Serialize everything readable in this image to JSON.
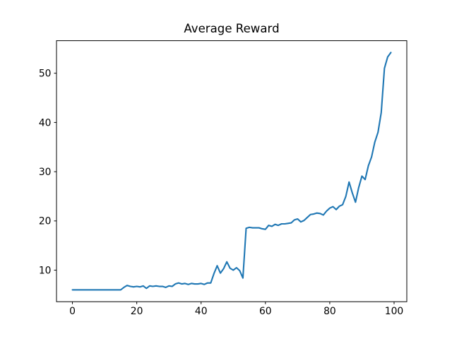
{
  "chart_data": {
    "type": "line",
    "title": "Average Reward",
    "xlabel": "",
    "ylabel": "",
    "grid": false,
    "legend": "none",
    "xlim": [
      -4.95,
      103.95
    ],
    "ylim": [
      3.59,
      56.61
    ],
    "xticks": [
      0,
      20,
      40,
      60,
      80,
      100
    ],
    "yticks": [
      10,
      20,
      30,
      40,
      50
    ],
    "background_color": "#ffffff",
    "spine_color": "#000000",
    "text_color": "#000000",
    "series": [
      {
        "name": "average-reward",
        "color": "#1f77b4",
        "x_start": 0,
        "x_step": 1,
        "values": [
          6.0,
          6.0,
          6.0,
          6.0,
          6.0,
          6.0,
          6.0,
          6.0,
          6.0,
          6.0,
          6.0,
          6.0,
          6.0,
          6.0,
          6.0,
          6.0,
          6.5,
          6.9,
          6.7,
          6.6,
          6.7,
          6.6,
          6.8,
          6.3,
          6.8,
          6.7,
          6.8,
          6.7,
          6.7,
          6.5,
          6.8,
          6.7,
          7.2,
          7.4,
          7.2,
          7.3,
          7.1,
          7.3,
          7.2,
          7.2,
          7.3,
          7.1,
          7.4,
          7.4,
          9.3,
          10.9,
          9.4,
          10.3,
          11.7,
          10.4,
          10.0,
          10.5,
          9.9,
          8.4,
          18.5,
          18.7,
          18.6,
          18.6,
          18.6,
          18.4,
          18.3,
          19.1,
          18.9,
          19.3,
          19.1,
          19.4,
          19.4,
          19.5,
          19.6,
          20.2,
          20.4,
          19.8,
          20.1,
          20.7,
          21.3,
          21.4,
          21.6,
          21.5,
          21.2,
          22.0,
          22.6,
          22.9,
          22.3,
          23.0,
          23.3,
          25.0,
          27.9,
          25.7,
          23.8,
          26.8,
          29.1,
          28.4,
          31.2,
          33.0,
          36.0,
          38.0,
          42.0,
          51.0,
          53.3,
          54.2
        ]
      }
    ]
  }
}
